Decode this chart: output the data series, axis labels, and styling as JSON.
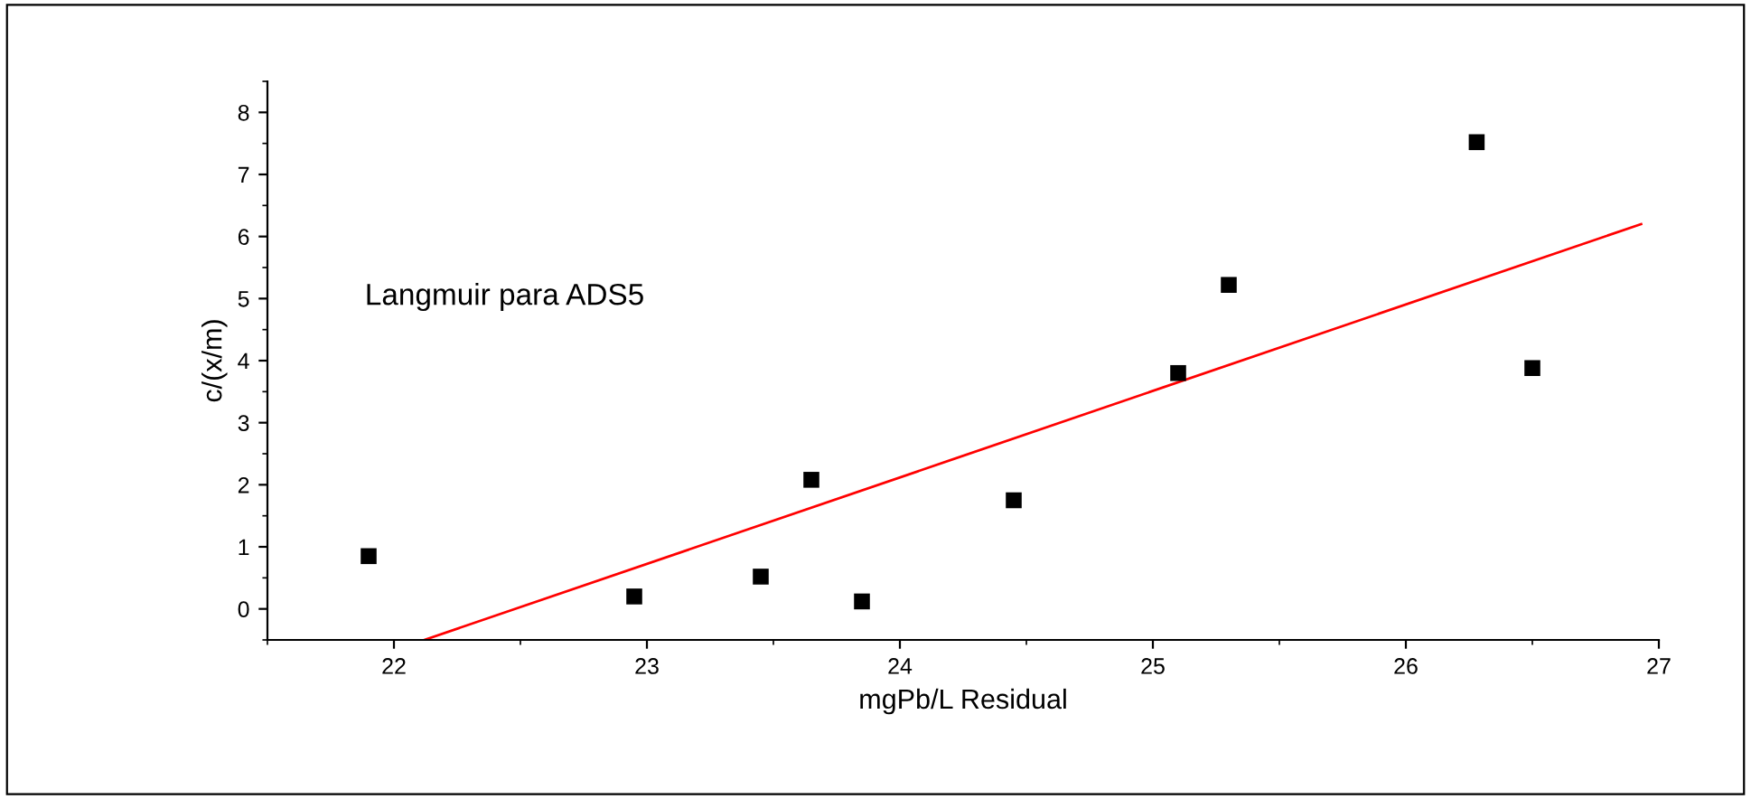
{
  "chart_data": {
    "type": "scatter",
    "xlabel": "mgPb/L Residual",
    "ylabel": "c/(x/m)",
    "annotations": [
      "Langmuir para ADS5"
    ],
    "xlim": [
      21.5,
      27
    ],
    "xticks": [
      22,
      23,
      24,
      25,
      26,
      27
    ],
    "ylim": [
      -0.5,
      8.5
    ],
    "yticks": [
      0,
      1,
      2,
      3,
      4,
      5,
      6,
      7,
      8
    ],
    "grid": false,
    "series": [
      {
        "marker": "square",
        "color": "#000000",
        "x": [
          21.9,
          22.95,
          23.45,
          23.65,
          23.85,
          24.45,
          25.1,
          25.3,
          26.28,
          26.5
        ],
        "values": [
          0.85,
          0.2,
          0.52,
          2.08,
          0.12,
          1.75,
          3.8,
          5.22,
          7.52,
          3.88
        ]
      },
      {
        "type": "line",
        "color": "#ff0000",
        "x": [
          22.12,
          26.93
        ],
        "values": [
          -0.5,
          6.2
        ]
      }
    ]
  }
}
